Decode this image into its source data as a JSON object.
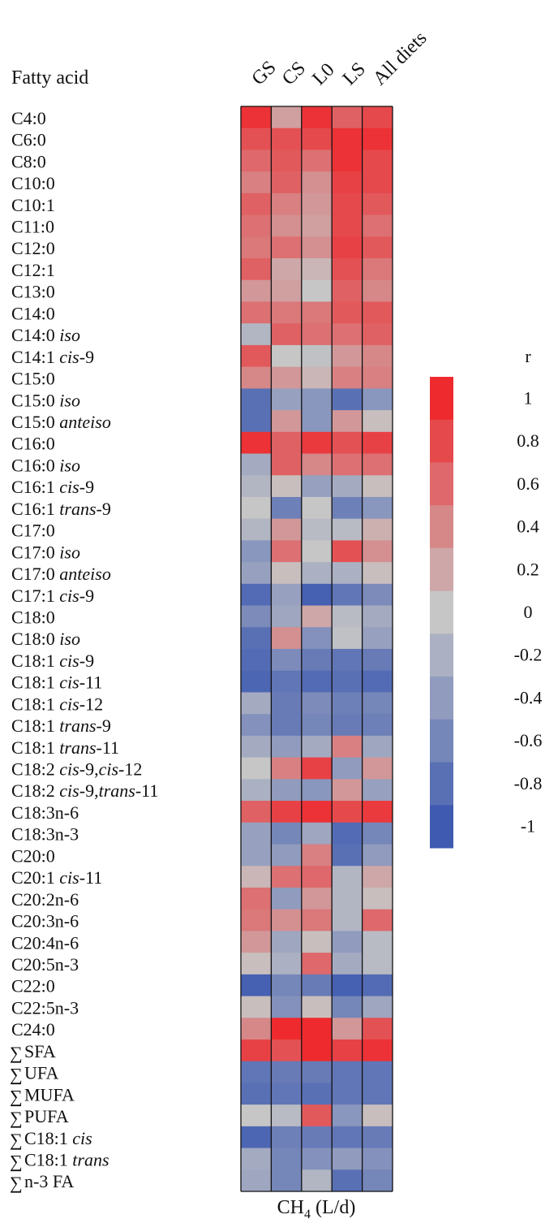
{
  "chart_data": {
    "type": "heatmap",
    "row_header": "Fatty acid",
    "xlabel": "CH4 (L/d)",
    "xlabel_parts": {
      "main": "CH",
      "sub": "4",
      "rest": " (L/d)"
    },
    "columns": [
      "GS",
      "CS",
      "L0",
      "LS",
      "All diets"
    ],
    "rows": [
      {
        "name": "C4:0",
        "italic": "",
        "values": [
          0.95,
          0.25,
          0.95,
          0.65,
          0.8
        ]
      },
      {
        "name": "C6:0",
        "italic": "",
        "values": [
          0.75,
          0.75,
          0.8,
          0.95,
          0.95
        ]
      },
      {
        "name": "C8:0",
        "italic": "",
        "values": [
          0.6,
          0.7,
          0.55,
          0.95,
          0.8
        ]
      },
      {
        "name": "C10:0",
        "italic": "",
        "values": [
          0.45,
          0.65,
          0.35,
          0.85,
          0.8
        ]
      },
      {
        "name": "C10:1",
        "italic": "",
        "values": [
          0.65,
          0.45,
          0.3,
          0.8,
          0.7
        ]
      },
      {
        "name": "C11:0",
        "italic": "",
        "values": [
          0.55,
          0.35,
          0.25,
          0.8,
          0.55
        ]
      },
      {
        "name": "C12:0",
        "italic": "",
        "values": [
          0.5,
          0.55,
          0.35,
          0.85,
          0.7
        ]
      },
      {
        "name": "C12:1",
        "italic": "",
        "values": [
          0.65,
          0.2,
          0.1,
          0.75,
          0.5
        ]
      },
      {
        "name": "C13:0",
        "italic": "",
        "values": [
          0.3,
          0.25,
          0.0,
          0.65,
          0.4
        ]
      },
      {
        "name": "C14:0",
        "italic": "",
        "values": [
          0.55,
          0.5,
          0.5,
          0.7,
          0.7
        ]
      },
      {
        "name": "C14:0",
        "italic": "iso",
        "values": [
          -0.15,
          0.65,
          0.55,
          0.55,
          0.65
        ]
      },
      {
        "name": "C14:1",
        "italic": "cis",
        "suffix": "-9",
        "values": [
          0.7,
          0.0,
          -0.05,
          0.3,
          0.4
        ]
      },
      {
        "name": "C15:0",
        "italic": "",
        "values": [
          0.4,
          0.3,
          0.1,
          0.45,
          0.45
        ]
      },
      {
        "name": "C15:0",
        "italic": "iso",
        "values": [
          -0.8,
          -0.35,
          -0.45,
          -0.8,
          -0.45
        ]
      },
      {
        "name": "C15:0",
        "italic": "anteiso",
        "values": [
          -0.8,
          0.3,
          -0.45,
          0.3,
          0.05
        ]
      },
      {
        "name": "C16:0",
        "italic": "",
        "values": [
          0.95,
          0.65,
          0.9,
          0.75,
          0.85
        ]
      },
      {
        "name": "C16:0",
        "italic": "iso",
        "values": [
          -0.25,
          0.65,
          0.4,
          0.55,
          0.55
        ]
      },
      {
        "name": "C16:1",
        "italic": "cis",
        "suffix": "-9",
        "values": [
          -0.15,
          0.05,
          -0.35,
          -0.25,
          0.05
        ]
      },
      {
        "name": "C16:1",
        "italic": "trans",
        "suffix": "-9",
        "values": [
          0.0,
          -0.65,
          0.0,
          -0.65,
          -0.45
        ]
      },
      {
        "name": "C17:0",
        "italic": "",
        "values": [
          -0.15,
          0.3,
          -0.1,
          -0.1,
          0.15
        ]
      },
      {
        "name": "C17:0",
        "italic": "iso",
        "values": [
          -0.45,
          0.55,
          0.0,
          0.75,
          0.35
        ]
      },
      {
        "name": "C17:0",
        "italic": "anteiso",
        "values": [
          -0.35,
          0.05,
          -0.2,
          -0.2,
          0.05
        ]
      },
      {
        "name": "C17:1",
        "italic": "cis",
        "suffix": "-9",
        "values": [
          -0.85,
          -0.35,
          -0.95,
          -0.75,
          -0.55
        ]
      },
      {
        "name": "C18:0",
        "italic": "",
        "values": [
          -0.55,
          -0.3,
          0.2,
          -0.1,
          -0.25
        ]
      },
      {
        "name": "C18:0",
        "italic": "iso",
        "values": [
          -0.8,
          0.35,
          -0.5,
          -0.05,
          -0.35
        ]
      },
      {
        "name": "C18:1",
        "italic": "cis",
        "suffix": "-9",
        "values": [
          -0.85,
          -0.55,
          -0.7,
          -0.75,
          -0.7
        ]
      },
      {
        "name": "C18:1",
        "italic": "cis",
        "suffix": "-11",
        "values": [
          -0.9,
          -0.75,
          -0.85,
          -0.8,
          -0.85
        ]
      },
      {
        "name": "C18:1",
        "italic": "cis",
        "suffix": "-12",
        "values": [
          -0.25,
          -0.7,
          -0.55,
          -0.65,
          -0.6
        ]
      },
      {
        "name": "C18:1",
        "italic": "trans",
        "suffix": "-9",
        "values": [
          -0.5,
          -0.7,
          -0.6,
          -0.7,
          -0.65
        ]
      },
      {
        "name": "C18:1",
        "italic": "trans",
        "suffix": "-11",
        "values": [
          -0.25,
          -0.4,
          -0.25,
          0.45,
          -0.3
        ]
      },
      {
        "name": "C18:2",
        "italic": "cis",
        "suffix": "-9,",
        "italic2": "cis",
        "suffix2": "-12",
        "values": [
          0.0,
          0.45,
          0.85,
          -0.4,
          0.3
        ]
      },
      {
        "name": "C18:2",
        "italic": "cis",
        "suffix": "-9,",
        "italic2": "trans",
        "suffix2": "-11",
        "values": [
          -0.2,
          -0.4,
          -0.45,
          0.3,
          -0.35
        ]
      },
      {
        "name": "C18:3n-6",
        "italic": "",
        "values": [
          0.65,
          0.85,
          0.95,
          0.8,
          0.9
        ]
      },
      {
        "name": "C18:3n-3",
        "italic": "",
        "values": [
          -0.35,
          -0.6,
          -0.3,
          -0.85,
          -0.6
        ]
      },
      {
        "name": "C20:0",
        "italic": "",
        "values": [
          -0.35,
          -0.4,
          0.45,
          -0.8,
          -0.4
        ]
      },
      {
        "name": "C20:1",
        "italic": "cis",
        "suffix": "-11",
        "values": [
          0.1,
          0.55,
          0.6,
          -0.15,
          0.2
        ]
      },
      {
        "name": "C20:2n-6",
        "italic": "",
        "values": [
          0.55,
          -0.4,
          0.3,
          -0.15,
          0.05
        ]
      },
      {
        "name": "C20:3n-6",
        "italic": "",
        "values": [
          0.5,
          0.35,
          0.5,
          -0.15,
          0.6
        ]
      },
      {
        "name": "C20:4n-6",
        "italic": "",
        "values": [
          0.3,
          -0.3,
          0.05,
          -0.4,
          -0.1
        ]
      },
      {
        "name": "C20:5n-3",
        "italic": "",
        "values": [
          0.05,
          -0.2,
          0.6,
          -0.25,
          -0.1
        ]
      },
      {
        "name": "C22:0",
        "italic": "",
        "values": [
          -0.95,
          -0.6,
          -0.7,
          -0.95,
          -0.85
        ]
      },
      {
        "name": "C22:5n-3",
        "italic": "",
        "values": [
          0.05,
          -0.5,
          0.05,
          -0.6,
          -0.3
        ]
      },
      {
        "name": "C24:0",
        "italic": "",
        "values": [
          0.4,
          1.0,
          1.0,
          0.3,
          0.75
        ]
      },
      {
        "name": "SFA",
        "sum": true,
        "italic": "",
        "values": [
          0.85,
          0.75,
          1.0,
          0.85,
          0.95
        ]
      },
      {
        "name": "UFA",
        "sum": true,
        "italic": "",
        "values": [
          -0.75,
          -0.7,
          -0.7,
          -0.75,
          -0.75
        ]
      },
      {
        "name": "MUFA",
        "sum": true,
        "italic": "",
        "values": [
          -0.8,
          -0.75,
          -0.8,
          -0.75,
          -0.75
        ]
      },
      {
        "name": "PUFA",
        "sum": true,
        "italic": "",
        "values": [
          0.0,
          -0.1,
          0.7,
          -0.45,
          0.05
        ]
      },
      {
        "name": "C18:1",
        "sum": true,
        "italic": "cis",
        "values": [
          -0.9,
          -0.65,
          -0.7,
          -0.75,
          -0.7
        ]
      },
      {
        "name": "C18:1",
        "sum": true,
        "italic": "trans",
        "values": [
          -0.25,
          -0.6,
          -0.5,
          -0.4,
          -0.5
        ]
      },
      {
        "name": "n-3 FA",
        "sum": true,
        "italic": "",
        "values": [
          -0.3,
          -0.6,
          -0.15,
          -0.8,
          -0.6
        ]
      }
    ],
    "legend": {
      "title": "r",
      "ticks": [
        "1",
        "0.8",
        "0.6",
        "0.4",
        "0.2",
        "0",
        "-0.2",
        "-0.4",
        "-0.6",
        "-0.8",
        "-1"
      ],
      "levels": [
        1.0,
        0.8,
        0.6,
        0.4,
        0.2,
        0.0,
        -0.2,
        -0.4,
        -0.6,
        -0.8,
        -1.0
      ]
    },
    "range": [
      -1,
      1
    ],
    "colors": {
      "high": "#ee2a2e",
      "mid": "#c6c6c6",
      "low": "#3f5bb1"
    }
  }
}
